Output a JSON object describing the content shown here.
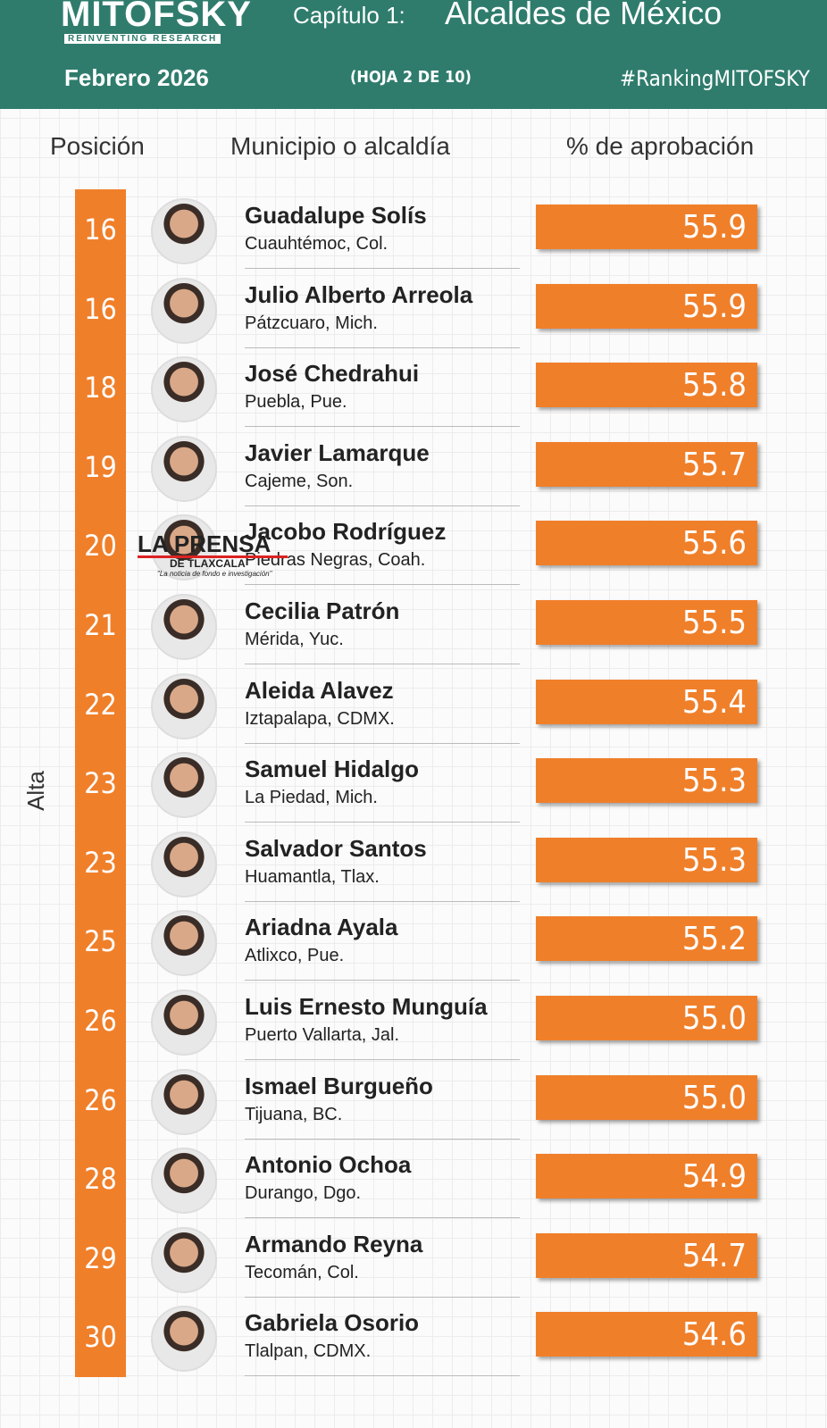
{
  "header": {
    "brand": "MITOFSKY",
    "brand_sub": "REINVENTING RESEARCH",
    "chapter": "Capítulo 1:",
    "chapter_title": "Alcaldes de México",
    "date": "Febrero  2026",
    "sheet": "(HOJA 2 DE 10)",
    "hashtag": "#RankingMITOFSKY"
  },
  "columns": [
    "Posición",
    "Municipio o alcaldía",
    "% de aprobación"
  ],
  "side_label": "Alta",
  "watermark": {
    "title": "LA PRENSA",
    "subtitle": "DE TLAXCALA",
    "tagline": "\"La noticia de fondo e investigación\""
  },
  "rows": [
    [
      "16",
      "Guadalupe Solís",
      "Cuauhtémoc, Col.",
      "55.9"
    ],
    [
      "16",
      "Julio Alberto Arreola",
      "Pátzcuaro, Mich.",
      "55.9"
    ],
    [
      "18",
      "José Chedrahui",
      "Puebla, Pue.",
      "55.8"
    ],
    [
      "19",
      "Javier Lamarque",
      "Cajeme, Son.",
      "55.7"
    ],
    [
      "20",
      "Jacobo Rodríguez",
      "Piedras Negras, Coah.",
      "55.6"
    ],
    [
      "21",
      "Cecilia Patrón",
      "Mérida, Yuc.",
      "55.5"
    ],
    [
      "22",
      "Aleida Alavez",
      "Iztapalapa, CDMX.",
      "55.4"
    ],
    [
      "23",
      "Samuel Hidalgo",
      "La Piedad, Mich.",
      "55.3"
    ],
    [
      "23",
      "Salvador Santos",
      "Huamantla, Tlax.",
      "55.3"
    ],
    [
      "25",
      "Ariadna Ayala",
      "Atlixco, Pue.",
      "55.2"
    ],
    [
      "26",
      "Luis Ernesto Munguía",
      "Puerto Vallarta, Jal.",
      "55.0"
    ],
    [
      "26",
      "Ismael Burgueño",
      "Tijuana, BC.",
      "55.0"
    ],
    [
      "28",
      "Antonio Ochoa",
      "Durango, Dgo.",
      "54.9"
    ],
    [
      "29",
      "Armando Reyna",
      "Tecomán, Col.",
      "54.7"
    ],
    [
      "30",
      "Gabriela Osorio",
      "Tlalpan, CDMX.",
      "54.6"
    ]
  ]
}
